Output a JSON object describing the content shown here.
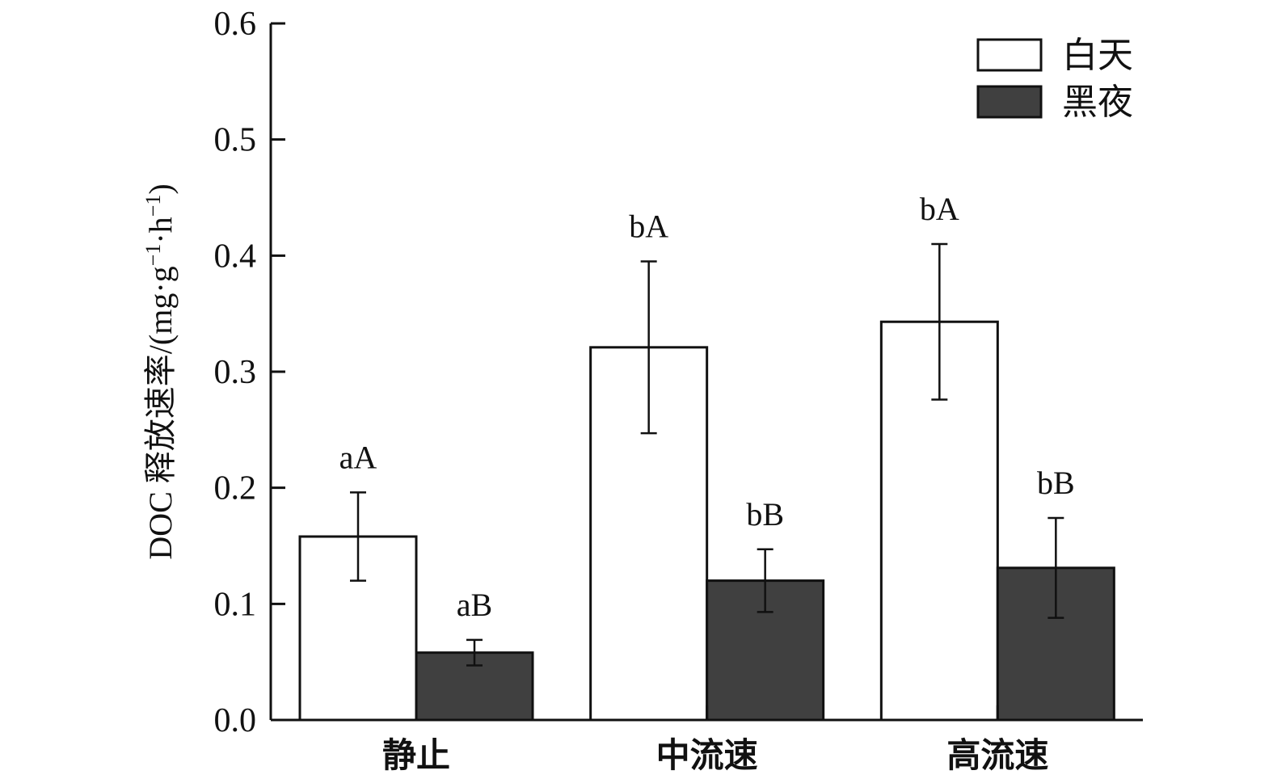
{
  "chart_data": {
    "type": "bar",
    "categories": [
      "静止",
      "中流速",
      "高流速"
    ],
    "series": [
      {
        "name": "白天",
        "values": [
          0.158,
          0.321,
          0.343
        ],
        "errors": [
          0.038,
          0.074,
          0.067
        ],
        "labels": [
          "aA",
          "bA",
          "bA"
        ],
        "color": "#ffffff"
      },
      {
        "name": "黑夜",
        "values": [
          0.058,
          0.12,
          0.131
        ],
        "errors": [
          0.011,
          0.027,
          0.043
        ],
        "labels": [
          "aB",
          "bB",
          "bB"
        ],
        "color": "#404040"
      }
    ],
    "ylabel": {
      "prefix": "DOC 释放速率/(mg·g",
      "sup1": "−1",
      "mid": "·h",
      "sup2": "−1",
      "suffix": ")"
    },
    "ylim": [
      0,
      0.6
    ],
    "yticks": [
      "0.0",
      "0.1",
      "0.2",
      "0.3",
      "0.4",
      "0.5",
      "0.6"
    ],
    "legend_position": "top-right",
    "grid": false
  }
}
